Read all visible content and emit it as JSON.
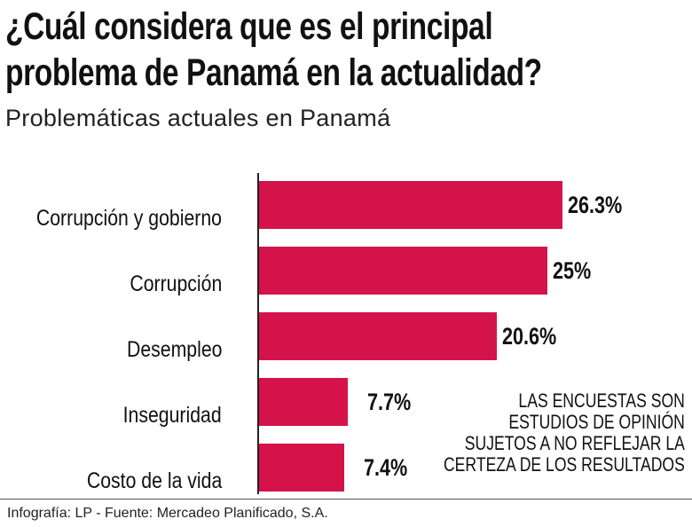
{
  "title_lines": [
    "¿Cuál considera que es el principal",
    "problema de Panamá en la actualidad?"
  ],
  "subtitle": "Problemáticas actuales en Panamá",
  "note_lines": [
    "LAS ENCUESTAS SON",
    "ESTUDIOS DE OPINIÓN",
    "SUJETOS A NO REFLEJAR LA",
    "CERTEZA DE LOS RESULTADOS"
  ],
  "footer": "Infografía: LP - Fuente: Mercadeo Planificado, S.A.",
  "chart_data": {
    "type": "bar",
    "orientation": "horizontal",
    "categories": [
      "Corrupción y gobierno",
      "Corrupción",
      "Desempleo",
      "Inseguridad",
      "Costo de la vida"
    ],
    "values": [
      26.3,
      25,
      20.6,
      7.7,
      7.4
    ],
    "value_labels": [
      "26.3%",
      "25%",
      "20.6%",
      "7.7%",
      "7.4%"
    ],
    "bar_color": "#d4134a",
    "grid": false
  }
}
